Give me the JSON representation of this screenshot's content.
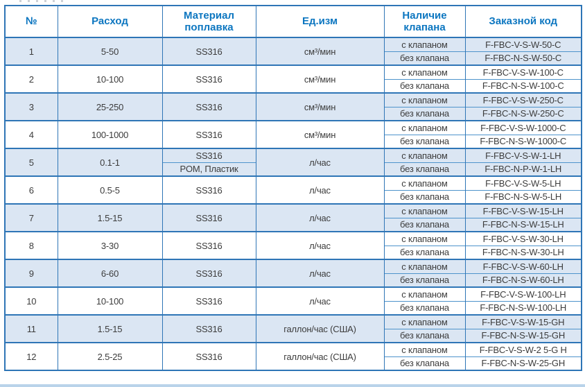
{
  "colors": {
    "accent": "#0c76c0",
    "border": "#2e75b6",
    "border_light": "#4d93cb",
    "stripe": "#dbe6f3",
    "text": "#3c3c3c",
    "bottom_strip": "#b9d3ea"
  },
  "table": {
    "headers": [
      "№",
      "Расход",
      "Материал поплавка",
      "Ед.изм",
      "Наличие клапана",
      "Заказной код"
    ],
    "valve_options": [
      "с клапаном",
      "без клапана"
    ],
    "rows": [
      {
        "num": "1",
        "flow": "5-50",
        "materials": [
          "SS316"
        ],
        "unit": "см³/мин",
        "codes": [
          "F-FBC-V-S-W-50-C",
          "F-FBC-N-S-W-50-C"
        ]
      },
      {
        "num": "2",
        "flow": "10-100",
        "materials": [
          "SS316"
        ],
        "unit": "см³/мин",
        "codes": [
          "F-FBC-V-S-W-100-C",
          "F-FBC-N-S-W-100-C"
        ]
      },
      {
        "num": "3",
        "flow": "25-250",
        "materials": [
          "SS316"
        ],
        "unit": "см³/мин",
        "codes": [
          "F-FBC-V-S-W-250-C",
          "F-FBC-N-S-W-250-C"
        ]
      },
      {
        "num": "4",
        "flow": "100-1000",
        "materials": [
          "SS316"
        ],
        "unit": "см³/мин",
        "codes": [
          "F-FBC-V-S-W-1000-C",
          "F-FBC-N-S-W-1000-C"
        ]
      },
      {
        "num": "5",
        "flow": "0.1-1",
        "materials": [
          "SS316",
          "POM, Пластик"
        ],
        "unit": "л/час",
        "codes": [
          "F-FBC-V-S-W-1-LH",
          "F-FBC-N-P-W-1-LH"
        ]
      },
      {
        "num": "6",
        "flow": "0.5-5",
        "materials": [
          "SS316"
        ],
        "unit": "л/час",
        "codes": [
          "F-FBC-V-S-W-5-LH",
          "F-FBC-N-S-W-5-LH"
        ]
      },
      {
        "num": "7",
        "flow": "1.5-15",
        "materials": [
          "SS316"
        ],
        "unit": "л/час",
        "codes": [
          "F-FBC-V-S-W-15-LH",
          "F-FBC-N-S-W-15-LH"
        ]
      },
      {
        "num": "8",
        "flow": "3-30",
        "materials": [
          "SS316"
        ],
        "unit": "л/час",
        "codes": [
          "F-FBC-V-S-W-30-LH",
          "F-FBC-N-S-W-30-LH"
        ]
      },
      {
        "num": "9",
        "flow": "6-60",
        "materials": [
          "SS316"
        ],
        "unit": "л/час",
        "codes": [
          "F-FBC-V-S-W-60-LH",
          "F-FBC-N-S-W-60-LH"
        ]
      },
      {
        "num": "10",
        "flow": "10-100",
        "materials": [
          "SS316"
        ],
        "unit": "л/час",
        "codes": [
          "F-FBC-V-S-W-100-LH",
          "F-FBC-N-S-W-100-LH"
        ]
      },
      {
        "num": "11",
        "flow": "1.5-15",
        "materials": [
          "SS316"
        ],
        "unit": "галлон/час (США)",
        "codes": [
          "F-FBC-V-S-W-15-GH",
          "F-FBC-N-S-W-15-GH"
        ]
      },
      {
        "num": "12",
        "flow": "2.5-25",
        "materials": [
          "SS316"
        ],
        "unit": "галлон/час (США)",
        "codes": [
          "F-FBC-V-S-W-2 5-G H",
          "F-FBC-N-S-W-25-GH"
        ]
      }
    ]
  }
}
